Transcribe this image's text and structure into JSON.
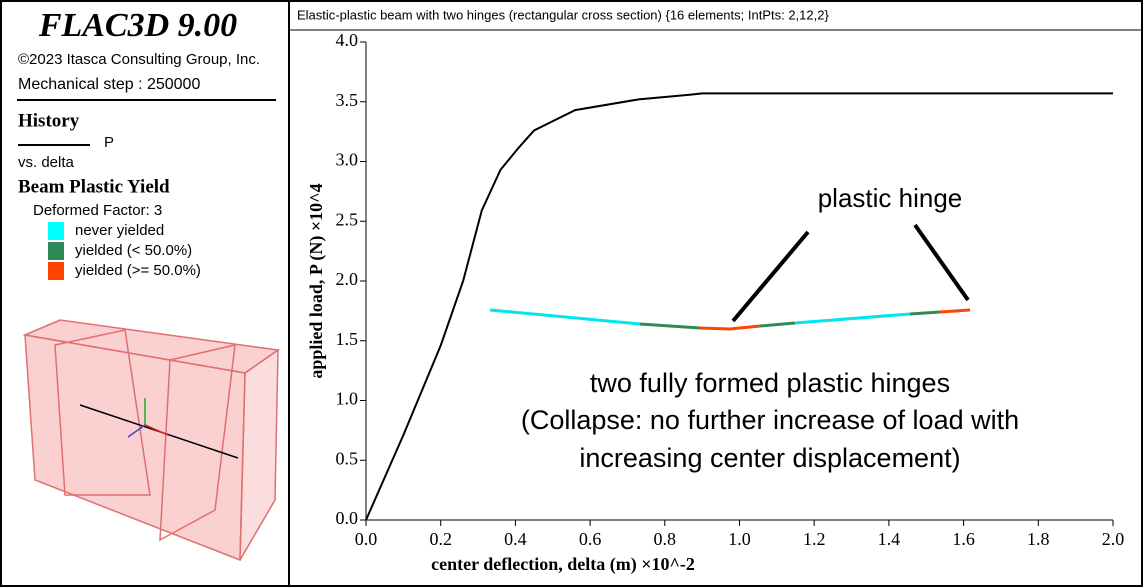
{
  "header": {
    "title": "FLAC3D 9.00",
    "copyright": "©2023 Itasca Consulting Group, Inc.",
    "step": "Mechanical step : 250000"
  },
  "legend": {
    "history_title": "History",
    "history_vs": "vs. delta",
    "yield_title": "Beam Plastic Yield",
    "factor": "Deformed Factor: 3",
    "items": [
      {
        "label": "never yielded",
        "color": "#00ffff"
      },
      {
        "label": "yielded (< 50.0%)",
        "color": "#2e8b57"
      },
      {
        "label": "yielded (>= 50.0%)",
        "color": "#ff4500"
      }
    ]
  },
  "chart_data": {
    "type": "line",
    "title": "Elastic-plastic beam with two hinges (rectangular cross section) {16 elements; IntPts: 2,12,2}",
    "x_label": "center deflection, delta (m) ×10^-2",
    "y_label": "applied load, P (N) ×10^4",
    "x": [
      0,
      0.1,
      0.2,
      0.26,
      0.31,
      0.36,
      0.41,
      0.45,
      0.56,
      0.73,
      0.87,
      0.9,
      2.0
    ],
    "series": [
      {
        "name": "P",
        "color": "#000000",
        "values": [
          0,
          0.71,
          1.46,
          2.0,
          2.59,
          2.93,
          3.12,
          3.26,
          3.43,
          3.52,
          3.56,
          3.57,
          3.57
        ]
      }
    ],
    "xlim": [
      0,
      2.0
    ],
    "ylim": [
      0,
      4.0
    ],
    "xticks": [
      {
        "value": 0,
        "label": "0.0"
      },
      0.2,
      0.4,
      0.6,
      0.8,
      {
        "value": 1,
        "label": "1.0"
      },
      1.2,
      1.4,
      1.6,
      1.8,
      {
        "value": 2,
        "label": "2.0"
      }
    ],
    "yticks": [
      {
        "value": 0,
        "label": "0.0"
      },
      0.5,
      {
        "value": 1,
        "label": "1.0"
      },
      1.5,
      {
        "value": 2,
        "label": "2.0"
      },
      2.5,
      {
        "value": 3,
        "label": "3.0"
      },
      3.5,
      {
        "value": 4,
        "label": "4.0"
      }
    ],
    "annotations": [
      "plastic hinge",
      "two fully formed plastic hinges",
      "(Collapse: no further increase of load with",
      "increasing center displacement)"
    ]
  }
}
